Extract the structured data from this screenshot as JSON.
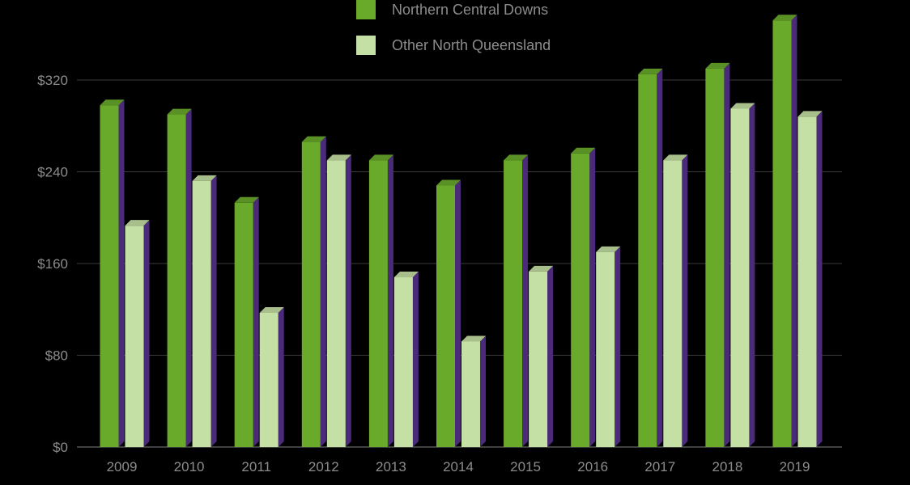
{
  "chart_data": {
    "type": "bar",
    "categories": [
      "2009",
      "2010",
      "2011",
      "2012",
      "2013",
      "2014",
      "2015",
      "2016",
      "2017",
      "2018",
      "2019"
    ],
    "series": [
      {
        "name": "Northern Central Downs",
        "color": "#6aaa2a",
        "values": [
          298,
          290,
          213,
          266,
          250,
          228,
          250,
          256,
          325,
          330,
          372
        ]
      },
      {
        "name": "Other North Queensland",
        "color": "#c5e0a5",
        "values": [
          193,
          232,
          117,
          250,
          148,
          92,
          153,
          170,
          250,
          295,
          288
        ]
      }
    ],
    "side_color": "#4b2a7a",
    "ylim": [
      0,
      400
    ],
    "yticks": [
      0,
      80,
      160,
      240,
      320
    ],
    "ytick_labels": [
      "$0",
      "$80",
      "$160",
      "$240",
      "$320"
    ],
    "grid": true,
    "legend_position": "top",
    "title": "",
    "xlabel": "",
    "ylabel": ""
  }
}
